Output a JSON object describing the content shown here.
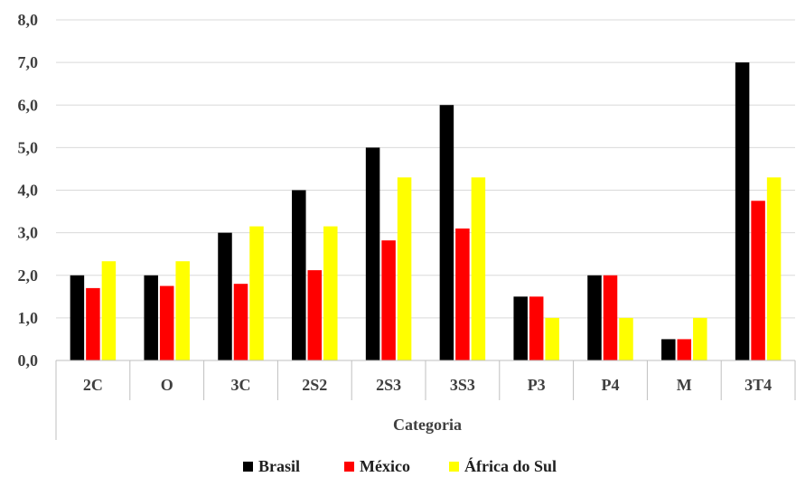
{
  "chart_data": {
    "type": "bar",
    "title": "",
    "xlabel": "Categoria",
    "ylabel": "",
    "categories": [
      "2C",
      "O",
      "3C",
      "2S2",
      "2S3",
      "3S3",
      "P3",
      "P4",
      "M",
      "3T4"
    ],
    "ylim": [
      0,
      8
    ],
    "yticks": [
      "0,0",
      "1,0",
      "2,0",
      "3,0",
      "4,0",
      "5,0",
      "6,0",
      "7,0",
      "8,0"
    ],
    "grid": true,
    "legend_position": "bottom",
    "series": [
      {
        "name": "Brasil",
        "color": "#000000",
        "values": [
          2.0,
          2.0,
          3.0,
          4.0,
          5.0,
          6.0,
          1.5,
          2.0,
          0.5,
          7.0
        ]
      },
      {
        "name": "México",
        "color": "#ff0000",
        "values": [
          1.7,
          1.75,
          1.8,
          2.12,
          2.82,
          3.1,
          1.5,
          2.0,
          0.5,
          3.75
        ]
      },
      {
        "name": "África do Sul",
        "color": "#ffff00",
        "values": [
          2.33,
          2.33,
          3.15,
          3.15,
          4.3,
          4.3,
          1.0,
          1.0,
          1.0,
          4.3
        ]
      }
    ]
  }
}
